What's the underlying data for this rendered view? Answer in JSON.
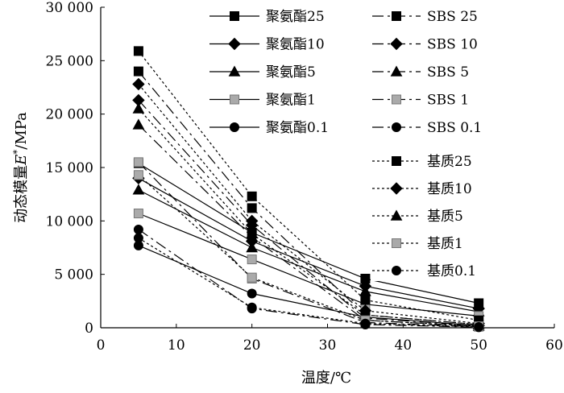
{
  "chart_data": {
    "type": "line",
    "xlabel": "温度/℃",
    "ylabel_parts": [
      "动态模量",
      "E",
      "*",
      "/MPa"
    ],
    "xlim": [
      0,
      60
    ],
    "ylim": [
      0,
      30000
    ],
    "xticks": [
      0,
      10,
      20,
      30,
      40,
      50,
      60
    ],
    "yticks": [
      0,
      5000,
      10000,
      15000,
      20000,
      25000,
      30000
    ],
    "xtick_labels": [
      "0",
      "10",
      "20",
      "30",
      "40",
      "50",
      "60"
    ],
    "ytick_labels": [
      "0",
      "5 000",
      "10 000",
      "15 000",
      "20 000",
      "25 000",
      "30 000"
    ],
    "x": [
      5,
      20,
      35,
      50
    ],
    "series": [
      {
        "name": "聚氨酯25",
        "group": "pu",
        "marker": "square",
        "color": "#000000",
        "values": [
          15400,
          8900,
          4600,
          2300
        ]
      },
      {
        "name": "聚氨酯10",
        "group": "pu",
        "marker": "diamond",
        "color": "#000000",
        "values": [
          14000,
          8100,
          3900,
          1800
        ]
      },
      {
        "name": "聚氨酯5",
        "group": "pu",
        "marker": "triangle",
        "color": "#000000",
        "values": [
          12900,
          7500,
          3400,
          1500
        ]
      },
      {
        "name": "聚氨酯1",
        "group": "pu",
        "marker": "square",
        "color": "#aaaaaa",
        "values": [
          10700,
          6400,
          2200,
          1100
        ]
      },
      {
        "name": "聚氨酯0.1",
        "group": "pu",
        "marker": "circle",
        "color": "#000000",
        "values": [
          7700,
          3200,
          1000,
          200
        ]
      },
      {
        "name": "SBS 25",
        "group": "sbs",
        "marker": "square",
        "color": "#000000",
        "values": [
          24000,
          11200,
          1200,
          300
        ]
      },
      {
        "name": "SBS 10",
        "group": "sbs",
        "marker": "diamond",
        "color": "#000000",
        "values": [
          21300,
          9600,
          900,
          200
        ]
      },
      {
        "name": "SBS 5",
        "group": "sbs",
        "marker": "triangle",
        "color": "#000000",
        "values": [
          19000,
          8500,
          700,
          150
        ]
      },
      {
        "name": "SBS 1",
        "group": "sbs",
        "marker": "square",
        "color": "#aaaaaa",
        "values": [
          15500,
          4600,
          500,
          100
        ]
      },
      {
        "name": "SBS 0.1",
        "group": "sbs",
        "marker": "circle",
        "color": "#000000",
        "values": [
          9200,
          1800,
          300,
          50
        ]
      },
      {
        "name": "基质25",
        "group": "base",
        "marker": "square",
        "color": "#000000",
        "values": [
          25900,
          12300,
          2600,
          700
        ]
      },
      {
        "name": "基质10",
        "group": "base",
        "marker": "diamond",
        "color": "#000000",
        "values": [
          22800,
          10000,
          1600,
          400
        ]
      },
      {
        "name": "基质5",
        "group": "base",
        "marker": "triangle",
        "color": "#000000",
        "values": [
          20500,
          8800,
          1200,
          300
        ]
      },
      {
        "name": "基质1",
        "group": "base",
        "marker": "square",
        "color": "#aaaaaa",
        "values": [
          14300,
          4700,
          700,
          150
        ]
      },
      {
        "name": "基质0.1",
        "group": "base",
        "marker": "circle",
        "color": "#000000",
        "values": [
          8400,
          1900,
          400,
          80
        ]
      }
    ]
  }
}
